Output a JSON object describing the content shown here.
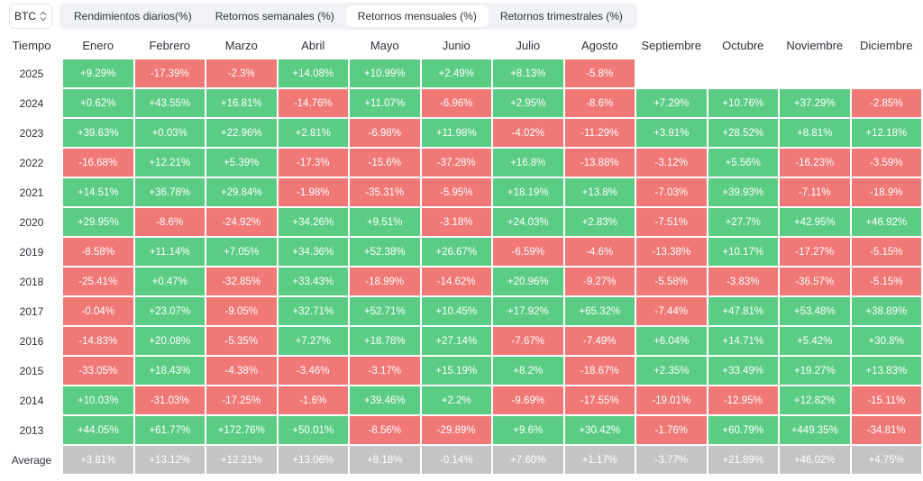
{
  "asset_selector": {
    "value": "BTC"
  },
  "tabs": [
    {
      "label": "Rendimientos diarios(%)",
      "active": false
    },
    {
      "label": "Retornos semanales (%)",
      "active": false
    },
    {
      "label": "Retornos mensuales (%)",
      "active": true
    },
    {
      "label": "Retornos trimestrales (%)",
      "active": false
    }
  ],
  "colors": {
    "positive": "#5bcc84",
    "negative": "#f07876",
    "average": "#c4c4c4"
  },
  "table": {
    "corner_header": "Tiempo",
    "months": [
      "Enero",
      "Febrero",
      "Marzo",
      "Abril",
      "Mayo",
      "Junio",
      "Julio",
      "Agosto",
      "Septiembre",
      "Octubre",
      "Noviembre",
      "Diciembre"
    ],
    "rows": [
      {
        "year": "2025",
        "values": [
          "+9.29%",
          "-17.39%",
          "-2.3%",
          "+14.08%",
          "+10.99%",
          "+2.49%",
          "+8.13%",
          "-5.8%",
          null,
          null,
          null,
          null
        ]
      },
      {
        "year": "2024",
        "values": [
          "+0.62%",
          "+43.55%",
          "+16.81%",
          "-14.76%",
          "+11.07%",
          "-6.96%",
          "+2.95%",
          "-8.6%",
          "+7.29%",
          "+10.76%",
          "+37.29%",
          "-2.85%"
        ]
      },
      {
        "year": "2023",
        "values": [
          "+39.63%",
          "+0.03%",
          "+22.96%",
          "+2.81%",
          "-6.98%",
          "+11.98%",
          "-4.02%",
          "-11.29%",
          "+3.91%",
          "+28.52%",
          "+8.81%",
          "+12.18%"
        ]
      },
      {
        "year": "2022",
        "values": [
          "-16.68%",
          "+12.21%",
          "+5.39%",
          "-17.3%",
          "-15.6%",
          "-37.28%",
          "+16.8%",
          "-13.88%",
          "-3.12%",
          "+5.56%",
          "-16.23%",
          "-3.59%"
        ]
      },
      {
        "year": "2021",
        "values": [
          "+14.51%",
          "+36.78%",
          "+29.84%",
          "-1.98%",
          "-35.31%",
          "-5.95%",
          "+18.19%",
          "+13.8%",
          "-7.03%",
          "+39.93%",
          "-7.11%",
          "-18.9%"
        ]
      },
      {
        "year": "2020",
        "values": [
          "+29.95%",
          "-8.6%",
          "-24.92%",
          "+34.26%",
          "+9.51%",
          "-3.18%",
          "+24.03%",
          "+2.83%",
          "-7.51%",
          "+27.7%",
          "+42.95%",
          "+46.92%"
        ]
      },
      {
        "year": "2019",
        "values": [
          "-8.58%",
          "+11.14%",
          "+7.05%",
          "+34.36%",
          "+52.38%",
          "+26.67%",
          "-6.59%",
          "-4.6%",
          "-13.38%",
          "+10.17%",
          "-17.27%",
          "-5.15%"
        ]
      },
      {
        "year": "2018",
        "values": [
          "-25.41%",
          "+0.47%",
          "-32.85%",
          "+33.43%",
          "-18.99%",
          "-14.62%",
          "+20.96%",
          "-9.27%",
          "-5.58%",
          "-3.83%",
          "-36.57%",
          "-5.15%"
        ]
      },
      {
        "year": "2017",
        "values": [
          "-0.04%",
          "+23.07%",
          "-9.05%",
          "+32.71%",
          "+52.71%",
          "+10.45%",
          "+17.92%",
          "+65.32%",
          "-7.44%",
          "+47.81%",
          "+53.48%",
          "+38.89%"
        ]
      },
      {
        "year": "2016",
        "values": [
          "-14.83%",
          "+20.08%",
          "-5.35%",
          "+7.27%",
          "+18.78%",
          "+27.14%",
          "-7.67%",
          "-7.49%",
          "+6.04%",
          "+14.71%",
          "+5.42%",
          "+30.8%"
        ]
      },
      {
        "year": "2015",
        "values": [
          "-33.05%",
          "+18.43%",
          "-4.38%",
          "-3.46%",
          "-3.17%",
          "+15.19%",
          "+8.2%",
          "-18.67%",
          "+2.35%",
          "+33.49%",
          "+19.27%",
          "+13.83%"
        ]
      },
      {
        "year": "2014",
        "values": [
          "+10.03%",
          "-31.03%",
          "-17.25%",
          "-1.6%",
          "+39.46%",
          "+2.2%",
          "-9.69%",
          "-17.55%",
          "-19.01%",
          "-12.95%",
          "+12.82%",
          "-15.11%"
        ]
      },
      {
        "year": "2013",
        "values": [
          "+44.05%",
          "+61.77%",
          "+172.76%",
          "+50.01%",
          "-8.56%",
          "-29.89%",
          "+9.6%",
          "+30.42%",
          "-1.76%",
          "+60.79%",
          "+449.35%",
          "-34.81%"
        ]
      }
    ],
    "average": {
      "label": "Average",
      "values": [
        "+3.81%",
        "+13.12%",
        "+12.21%",
        "+13.06%",
        "+8.18%",
        "-0.14%",
        "+7.60%",
        "+1.17%",
        "-3.77%",
        "+21.89%",
        "+46.02%",
        "+4.75%"
      ]
    }
  }
}
